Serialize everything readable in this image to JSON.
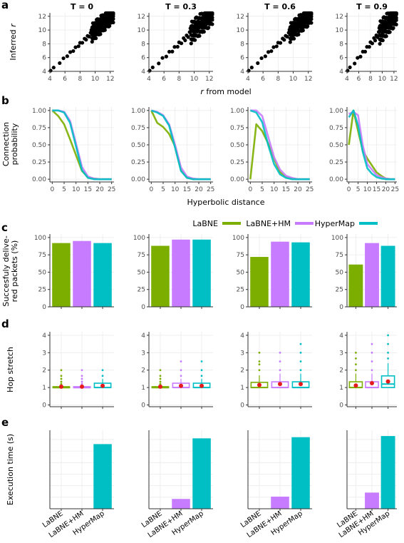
{
  "panel_letters": [
    "a",
    "b",
    "c",
    "d",
    "e"
  ],
  "colors": {
    "LaBNE": "#7cae00",
    "LaBNE+HM": "#c77cff",
    "HyperMap": "#00bfc4",
    "mean_marker": "#e41a1c",
    "panel_bg": "#ffffff",
    "grid": "#ebebeb",
    "points": "#000000"
  },
  "legend": {
    "position": "above panel c, right",
    "entries": [
      "LaBNE",
      "LaBNE+HM",
      "HyperMap"
    ]
  },
  "chart_data": [
    {
      "id": "a",
      "type": "scatter",
      "facets": [
        "T = 0",
        "T = 0.3",
        "T = 0.6",
        "T = 0.9"
      ],
      "xlabel": "r from model",
      "ylabel": "Inferred r",
      "xlim": [
        4,
        12.5
      ],
      "ylim": [
        4,
        12.5
      ],
      "xticks": [
        4,
        6,
        8,
        10,
        12
      ],
      "yticks": [
        4,
        6,
        8,
        10,
        12
      ],
      "grid": true,
      "description_points": "approximately y = x with spread increasing near the upper end",
      "points": [
        [
          4.1,
          4.1
        ],
        [
          4.5,
          4.6
        ],
        [
          5.3,
          5.1
        ],
        [
          5.8,
          6.0
        ],
        [
          6.3,
          6.1
        ],
        [
          6.7,
          6.9
        ],
        [
          7.1,
          6.8
        ],
        [
          7.4,
          7.6
        ],
        [
          7.8,
          7.5
        ],
        [
          8.0,
          8.3
        ],
        [
          8.3,
          8.0
        ],
        [
          8.6,
          8.9
        ],
        [
          8.8,
          8.4
        ],
        [
          9.0,
          9.3
        ],
        [
          9.2,
          8.9
        ],
        [
          9.4,
          9.8
        ],
        [
          9.6,
          9.2
        ],
        [
          9.8,
          10.1
        ],
        [
          10.0,
          9.6
        ],
        [
          10.1,
          10.4
        ],
        [
          10.3,
          9.9
        ],
        [
          10.4,
          10.8
        ],
        [
          10.6,
          10.2
        ],
        [
          10.7,
          11.1
        ],
        [
          10.9,
          10.5
        ],
        [
          11.0,
          11.3
        ],
        [
          11.1,
          10.7
        ],
        [
          11.2,
          11.6
        ],
        [
          11.3,
          10.9
        ],
        [
          11.4,
          11.8
        ],
        [
          11.5,
          11.1
        ],
        [
          11.6,
          12.0
        ],
        [
          11.7,
          11.3
        ],
        [
          11.8,
          12.1
        ],
        [
          11.9,
          11.5
        ],
        [
          12.0,
          12.2
        ],
        [
          12.1,
          11.7
        ],
        [
          12.2,
          12.3
        ],
        [
          12.3,
          11.9
        ],
        [
          12.4,
          12.4
        ],
        [
          11.5,
          10.5
        ],
        [
          11.8,
          10.8
        ],
        [
          12.0,
          11.0
        ],
        [
          10.5,
          11.5
        ],
        [
          11.0,
          12.0
        ],
        [
          12.2,
          11.2
        ],
        [
          9.5,
          10.5
        ],
        [
          10.2,
          11.0
        ],
        [
          11.3,
          12.3
        ],
        [
          12.4,
          11.6
        ]
      ]
    },
    {
      "id": "b",
      "type": "line",
      "facets": [
        "T = 0",
        "T = 0.3",
        "T = 0.6",
        "T = 0.9"
      ],
      "xlabel": "Hyperbolic distance",
      "ylabel": "Connection probability",
      "xlim": [
        -1,
        26
      ],
      "ylim": [
        -0.04,
        1.05
      ],
      "xticks": [
        0,
        5,
        10,
        15,
        20,
        25
      ],
      "yticks": [
        0.0,
        0.25,
        0.5,
        0.75,
        1.0
      ],
      "ytick_labels": [
        "0.00",
        "0.25",
        "0.50",
        "0.75",
        "1.00"
      ],
      "grid": true,
      "x": [
        0,
        2.5,
        5,
        7.5,
        10,
        12.5,
        15,
        17.5,
        20,
        22.5,
        25
      ],
      "facet_series": [
        [
          {
            "name": "LaBNE",
            "values": [
              1.0,
              0.92,
              0.8,
              0.58,
              0.35,
              0.12,
              0.03,
              0.01,
              0.0,
              0.0,
              0.0
            ]
          },
          {
            "name": "LaBNE+HM",
            "values": [
              1.0,
              1.0,
              0.98,
              0.85,
              0.52,
              0.18,
              0.04,
              0.01,
              0.0,
              0.0,
              0.0
            ]
          },
          {
            "name": "HyperMap",
            "values": [
              1.0,
              1.0,
              0.97,
              0.82,
              0.48,
              0.13,
              0.02,
              0.0,
              0.0,
              0.0,
              0.0
            ]
          }
        ],
        [
          {
            "name": "LaBNE",
            "values": [
              1.0,
              0.82,
              0.76,
              0.66,
              0.48,
              0.13,
              0.03,
              0.0,
              0.0,
              0.0,
              0.0
            ]
          },
          {
            "name": "LaBNE+HM",
            "values": [
              1.0,
              0.98,
              0.93,
              0.8,
              0.5,
              0.17,
              0.04,
              0.01,
              0.0,
              0.0,
              0.0
            ]
          },
          {
            "name": "HyperMap",
            "values": [
              1.0,
              0.97,
              0.92,
              0.78,
              0.46,
              0.12,
              0.02,
              0.0,
              0.0,
              0.0,
              0.0
            ]
          }
        ],
        [
          {
            "name": "LaBNE",
            "values": [
              0.0,
              0.8,
              0.7,
              0.52,
              0.3,
              0.1,
              0.04,
              0.01,
              0.0,
              0.0,
              0.0
            ]
          },
          {
            "name": "LaBNE+HM",
            "values": [
              1.0,
              1.0,
              0.92,
              0.62,
              0.32,
              0.14,
              0.05,
              0.02,
              0.0,
              0.0,
              0.0
            ]
          },
          {
            "name": "HyperMap",
            "values": [
              1.0,
              0.97,
              0.83,
              0.5,
              0.22,
              0.07,
              0.02,
              0.0,
              0.0,
              0.0,
              0.0
            ]
          }
        ],
        [
          {
            "name": "LaBNE",
            "values": [
              0.5,
              1.0,
              0.7,
              0.42,
              0.3,
              0.2,
              0.1,
              0.05,
              0.01,
              0.0,
              0.0
            ]
          },
          {
            "name": "LaBNE+HM",
            "values": [
              0.95,
              0.98,
              0.93,
              0.5,
              0.22,
              0.14,
              0.06,
              0.03,
              0.01,
              0.0,
              0.0
            ]
          },
          {
            "name": "HyperMap",
            "values": [
              0.9,
              1.0,
              0.78,
              0.4,
              0.16,
              0.08,
              0.03,
              0.01,
              0.0,
              0.0,
              0.0
            ]
          }
        ]
      ]
    },
    {
      "id": "c",
      "type": "bar",
      "categories": [
        "LaBNE",
        "LaBNE+HM",
        "HyperMap"
      ],
      "ylabel": "Succesfuly delive- red packets (%)",
      "ylabel_lines": [
        "Succesfuly delive-",
        "red packets (%)"
      ],
      "ylim": [
        0,
        105
      ],
      "yticks": [
        0,
        25,
        50,
        75,
        100
      ],
      "grid": true,
      "facet_values": [
        [
          92,
          95,
          92
        ],
        [
          88,
          97,
          97
        ],
        [
          72,
          94,
          93
        ],
        [
          61,
          92,
          88
        ]
      ]
    },
    {
      "id": "d",
      "type": "boxplot",
      "categories": [
        "LaBNE",
        "LaBNE+HM",
        "HyperMap"
      ],
      "ylabel": "Hop stretch",
      "ylim": [
        -0.1,
        4.2
      ],
      "yticks": [
        0,
        1,
        2,
        3,
        4
      ],
      "grid": true,
      "facet_boxes": [
        [
          {
            "q1": 1.0,
            "median": 1.0,
            "q3": 1.05,
            "mean": 1.05,
            "whisker_high": 1.1,
            "outliers": [
              1.2,
              1.33,
              1.5,
              1.67,
              2.0
            ]
          },
          {
            "q1": 1.0,
            "median": 1.0,
            "q3": 1.05,
            "mean": 1.05,
            "whisker_high": 1.1,
            "outliers": [
              1.2,
              1.33,
              1.5,
              1.67,
              2.0
            ]
          },
          {
            "q1": 1.0,
            "median": 1.0,
            "q3": 1.25,
            "mean": 1.1,
            "whisker_high": 1.5,
            "outliers": [
              1.67,
              2.0
            ]
          }
        ],
        [
          {
            "q1": 1.0,
            "median": 1.0,
            "q3": 1.05,
            "mean": 1.05,
            "whisker_high": 1.1,
            "outliers": [
              1.2,
              1.33,
              1.5,
              1.67,
              2.0
            ]
          },
          {
            "q1": 1.0,
            "median": 1.0,
            "q3": 1.25,
            "mean": 1.1,
            "whisker_high": 1.5,
            "outliers": [
              1.67,
              2.0,
              2.5
            ]
          },
          {
            "q1": 1.0,
            "median": 1.0,
            "q3": 1.25,
            "mean": 1.1,
            "whisker_high": 1.5,
            "outliers": [
              1.67,
              2.0,
              2.5
            ]
          }
        ],
        [
          {
            "q1": 1.0,
            "median": 1.0,
            "q3": 1.3,
            "mean": 1.15,
            "whisker_high": 1.7,
            "outliers": [
              2.0,
              2.33,
              2.5,
              3.0
            ]
          },
          {
            "q1": 1.0,
            "median": 1.0,
            "q3": 1.33,
            "mean": 1.2,
            "whisker_high": 1.8,
            "outliers": [
              2.0,
              2.5,
              3.0
            ]
          },
          {
            "q1": 1.0,
            "median": 1.0,
            "q3": 1.33,
            "mean": 1.2,
            "whisker_high": 1.8,
            "outliers": [
              2.0,
              2.5,
              3.0,
              3.5
            ]
          }
        ],
        [
          {
            "q1": 1.0,
            "median": 1.0,
            "q3": 1.33,
            "mean": 1.12,
            "whisker_high": 1.8,
            "outliers": [
              2.0,
              2.33,
              2.67,
              3.0
            ]
          },
          {
            "q1": 1.0,
            "median": 1.0,
            "q3": 1.33,
            "mean": 1.25,
            "whisker_high": 1.8,
            "outliers": [
              2.0,
              2.5,
              3.0,
              3.5
            ]
          },
          {
            "q1": 1.0,
            "median": 1.2,
            "q3": 1.67,
            "mean": 1.35,
            "whisker_high": 2.4,
            "outliers": [
              2.67,
              3.0,
              3.5,
              4.0
            ]
          }
        ]
      ]
    },
    {
      "id": "e",
      "type": "bar",
      "categories": [
        "LaBNE",
        "LaBNE+HM",
        "HyperMap"
      ],
      "ylabel": "Execution time (s)",
      "ylim": [
        0,
        68
      ],
      "yticks": [],
      "grid": true,
      "facet_values": [
        [
          0.2,
          0.3,
          56
        ],
        [
          0.3,
          8.5,
          61
        ],
        [
          0.3,
          10.5,
          62
        ],
        [
          0.3,
          14,
          63
        ]
      ]
    }
  ]
}
